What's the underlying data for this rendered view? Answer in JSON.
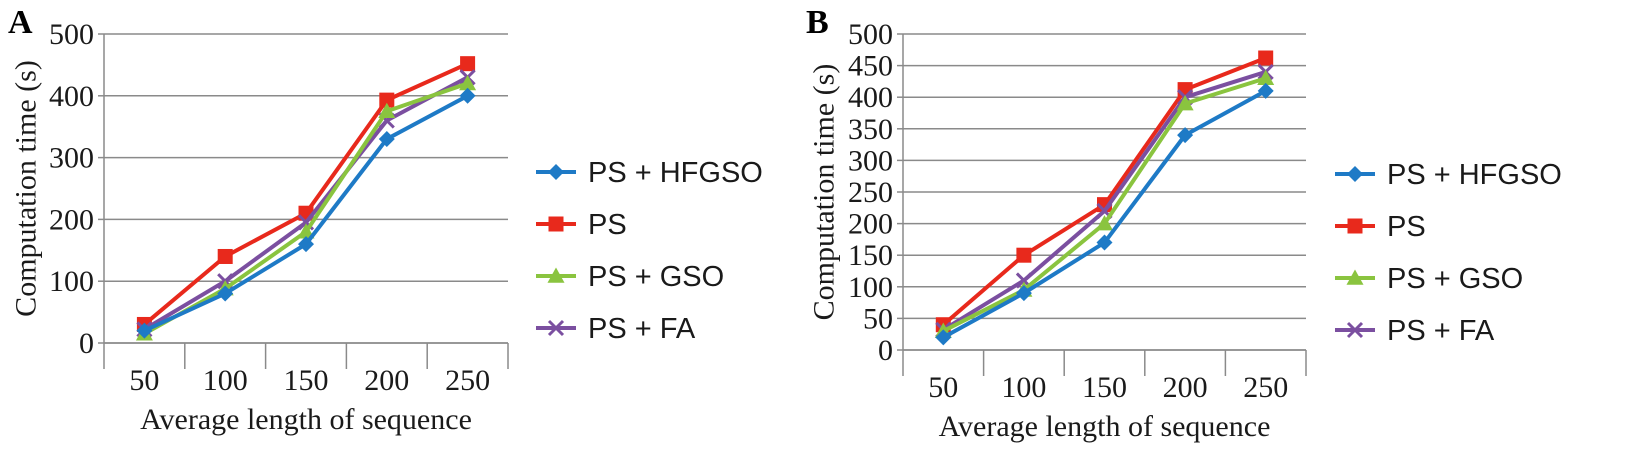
{
  "chart_data": [
    {
      "type": "line",
      "panel_label": "A",
      "title": "",
      "xlabel": "Average length of sequence",
      "ylabel": "Computation time (s)",
      "categories": [
        "50",
        "100",
        "150",
        "200",
        "250"
      ],
      "ylim": [
        0,
        500
      ],
      "yticks": [
        0,
        100,
        200,
        300,
        400,
        500
      ],
      "grid": true,
      "legend": "right",
      "series": [
        {
          "name": "PS + HFGSO",
          "color": "#1e7ac6",
          "marker": "diamond",
          "values": [
            20,
            80,
            160,
            330,
            400
          ]
        },
        {
          "name": "PS",
          "color": "#e8291c",
          "marker": "square",
          "values": [
            30,
            140,
            210,
            393,
            452
          ]
        },
        {
          "name": "PS + GSO",
          "color": "#8ac43f",
          "marker": "triangle",
          "values": [
            15,
            88,
            180,
            375,
            420
          ]
        },
        {
          "name": "PS + FA",
          "color": "#7b4fa0",
          "marker": "x",
          "values": [
            22,
            100,
            195,
            360,
            430
          ]
        }
      ]
    },
    {
      "type": "line",
      "panel_label": "B",
      "title": "",
      "xlabel": "Average length of sequence",
      "ylabel": "Computation time (s)",
      "categories": [
        "50",
        "100",
        "150",
        "200",
        "250"
      ],
      "ylim": [
        0,
        500
      ],
      "yticks": [
        0,
        50,
        100,
        150,
        200,
        250,
        300,
        350,
        400,
        450,
        500
      ],
      "grid": true,
      "legend": "right",
      "series": [
        {
          "name": "PS + HFGSO",
          "color": "#1e7ac6",
          "marker": "diamond",
          "values": [
            20,
            90,
            170,
            340,
            410
          ]
        },
        {
          "name": "PS",
          "color": "#e8291c",
          "marker": "square",
          "values": [
            40,
            150,
            230,
            412,
            462
          ]
        },
        {
          "name": "PS + GSO",
          "color": "#8ac43f",
          "marker": "triangle",
          "values": [
            30,
            95,
            200,
            390,
            430
          ]
        },
        {
          "name": "PS + FA",
          "color": "#7b4fa0",
          "marker": "x",
          "values": [
            32,
            110,
            220,
            400,
            440
          ]
        }
      ]
    }
  ]
}
